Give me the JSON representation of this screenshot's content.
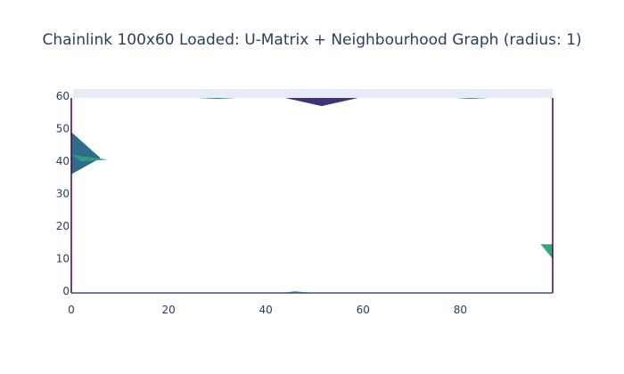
{
  "chart_data": {
    "type": "heatmap",
    "title": "Chainlink 100x60 Loaded: U-Matrix + Neighbourhood Graph (radius: 1)",
    "xlabel": "",
    "ylabel": "",
    "xlim": [
      0,
      99
    ],
    "ylim": [
      -0.5,
      59.5
    ],
    "x_ticks": [
      0,
      20,
      40,
      60,
      80
    ],
    "y_ticks": [
      0,
      10,
      20,
      30,
      40,
      50,
      60
    ],
    "colorscale": "viridis",
    "colors": {
      "plot_background": "#e5ecf6",
      "fill": "#ffffff",
      "text": "#2a3f5f",
      "viridis": [
        "#440154",
        "#3b528b",
        "#21918c",
        "#5ec962",
        "#fde725"
      ]
    },
    "regions": [
      {
        "name": "top-center wedge",
        "points": [
          [
            44,
            59.5
          ],
          [
            59,
            59.5
          ],
          [
            51.5,
            57
          ]
        ],
        "level": 0.15
      },
      {
        "name": "left wedge",
        "points": [
          [
            0,
            49
          ],
          [
            6,
            41
          ],
          [
            0,
            36
          ]
        ],
        "level": 0.35
      },
      {
        "name": "left wedge tip",
        "points": [
          [
            0,
            42
          ],
          [
            7.5,
            40.5
          ],
          [
            2,
            40
          ]
        ],
        "level": 0.55
      },
      {
        "name": "right wedge",
        "points": [
          [
            99,
            14.5
          ],
          [
            96.5,
            14.5
          ],
          [
            99,
            10
          ]
        ],
        "level": 0.6
      },
      {
        "name": "bottom-center sliver",
        "points": [
          [
            43,
            -0.5
          ],
          [
            50,
            -0.5
          ],
          [
            46,
            0
          ]
        ],
        "level": 0.45
      },
      {
        "name": "top-left sliver",
        "points": [
          [
            26,
            59.5
          ],
          [
            34,
            59.5
          ],
          [
            30,
            59.2
          ]
        ],
        "level": 0.5
      },
      {
        "name": "top-right sliver",
        "points": [
          [
            79,
            59.5
          ],
          [
            86,
            59.5
          ],
          [
            82,
            59.2
          ]
        ],
        "level": 0.6
      }
    ]
  }
}
